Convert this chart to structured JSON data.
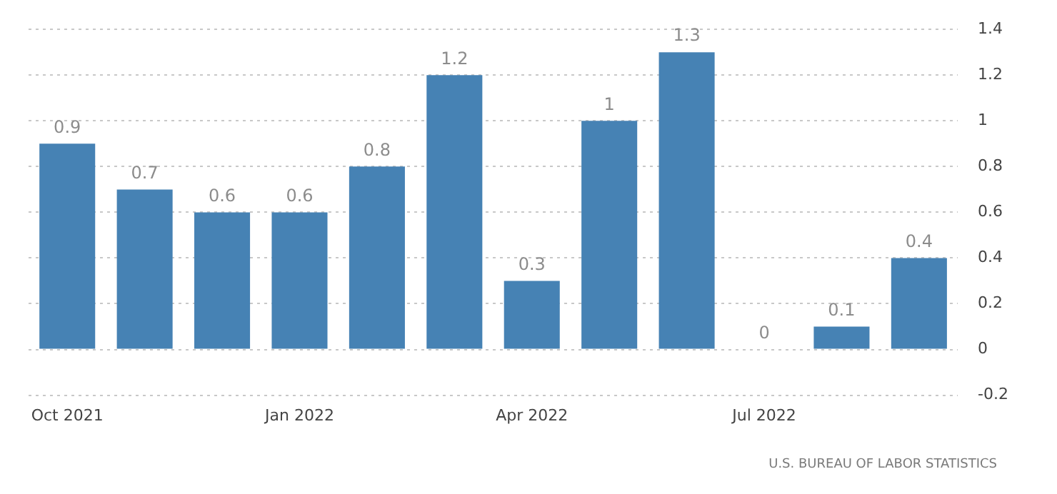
{
  "chart_data": {
    "type": "bar",
    "categories": [
      "Oct 2021",
      null,
      null,
      "Jan 2022",
      null,
      null,
      "Apr 2022",
      null,
      null,
      "Jul 2022",
      null,
      null
    ],
    "values": [
      0.9,
      0.7,
      0.6,
      0.6,
      0.8,
      1.2,
      0.3,
      1,
      1.3,
      0,
      0.1,
      0.4
    ],
    "color": "#4682b4",
    "ylim": [
      -0.2,
      1.4
    ],
    "yticks": [
      -0.2,
      0,
      0.2,
      0.4,
      0.6,
      0.8,
      1,
      1.2,
      1.4
    ],
    "grid": "y",
    "data_labels": true,
    "annotations": [
      "U.S. BUREAU OF LABOR STATISTICS"
    ]
  }
}
